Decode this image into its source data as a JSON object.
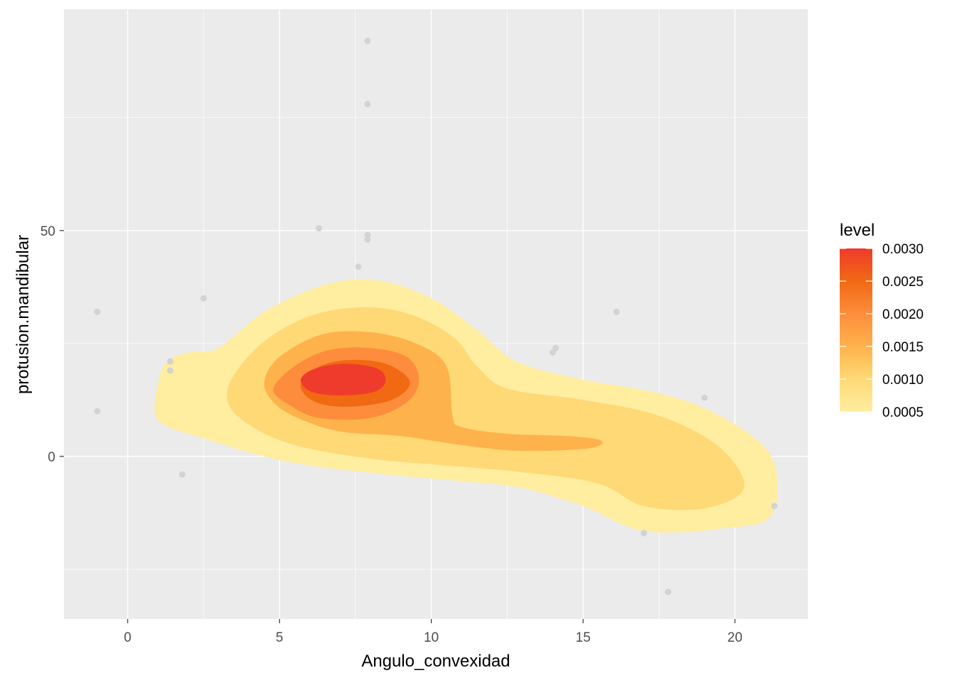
{
  "chart_data": {
    "type": "density2d_filled_with_scatter",
    "xlabel": "Angulo_convexidad",
    "ylabel": "protusion.mandibular",
    "xlim": [
      -2.1,
      22.4
    ],
    "ylim": [
      -36,
      99
    ],
    "x_ticks": [
      0,
      5,
      10,
      15,
      20
    ],
    "x_minor_ticks": [
      2.5,
      7.5,
      12.5,
      17.5
    ],
    "y_ticks": [
      0,
      50
    ],
    "y_minor_ticks": [
      -25,
      25,
      75
    ],
    "grid": true,
    "panel_background": "#ebebeb",
    "point_color": "#d3d3d3",
    "points": [
      {
        "x": 7.9,
        "y": 92
      },
      {
        "x": 7.9,
        "y": 78
      },
      {
        "x": 6.3,
        "y": 50.5
      },
      {
        "x": 7.9,
        "y": 49
      },
      {
        "x": 7.9,
        "y": 48
      },
      {
        "x": 7.6,
        "y": 42
      },
      {
        "x": -1.0,
        "y": 32
      },
      {
        "x": 2.5,
        "y": 35
      },
      {
        "x": 1.4,
        "y": 21
      },
      {
        "x": 1.4,
        "y": 19
      },
      {
        "x": -1.0,
        "y": 10
      },
      {
        "x": 1.8,
        "y": -4
      },
      {
        "x": 16.1,
        "y": 32
      },
      {
        "x": 14.1,
        "y": 24
      },
      {
        "x": 14.0,
        "y": 23
      },
      {
        "x": 19.0,
        "y": 13
      },
      {
        "x": 21.3,
        "y": -11
      },
      {
        "x": 17.0,
        "y": -17
      },
      {
        "x": 17.8,
        "y": -30
      }
    ],
    "levels": [
      {
        "level": 0.0005,
        "color": "#ffeda0",
        "poly": [
          [
            3,
            24
          ],
          [
            4.5,
            32
          ],
          [
            6.5,
            38
          ],
          [
            8.2,
            39
          ],
          [
            10,
            35
          ],
          [
            11.5,
            28
          ],
          [
            12.8,
            21
          ],
          [
            15,
            17
          ],
          [
            17.5,
            14
          ],
          [
            19.5,
            9
          ],
          [
            21.2,
            0
          ],
          [
            21.2,
            -13
          ],
          [
            19.5,
            -16
          ],
          [
            17,
            -16.5
          ],
          [
            15,
            -11
          ],
          [
            13,
            -7
          ],
          [
            11,
            -5.5
          ],
          [
            8.5,
            -4
          ],
          [
            6,
            -2
          ],
          [
            4.5,
            0
          ],
          [
            2.5,
            4
          ],
          [
            1,
            8
          ],
          [
            1,
            16
          ],
          [
            1.3,
            21
          ],
          [
            2,
            23
          ]
        ]
      },
      {
        "level": 0.001,
        "color": "#fed976",
        "poly": [
          [
            3.5,
            18
          ],
          [
            4.6,
            26
          ],
          [
            6.2,
            31.5
          ],
          [
            8,
            33
          ],
          [
            9.5,
            31
          ],
          [
            10.8,
            26
          ],
          [
            11.5,
            20
          ],
          [
            12.5,
            15
          ],
          [
            15,
            12.5
          ],
          [
            17.5,
            9
          ],
          [
            19.5,
            2
          ],
          [
            20.3,
            -7
          ],
          [
            19,
            -11.5
          ],
          [
            17,
            -11
          ],
          [
            15.5,
            -6
          ],
          [
            13,
            -3.5
          ],
          [
            10.5,
            -2
          ],
          [
            8,
            -0.5
          ],
          [
            5.5,
            2.5
          ],
          [
            4,
            7
          ],
          [
            3.3,
            12
          ]
        ]
      },
      {
        "level": 0.0015,
        "color": "#feb24c",
        "poly": [
          [
            4.5,
            16.5
          ],
          [
            5,
            22
          ],
          [
            6.4,
            27
          ],
          [
            8,
            27.5
          ],
          [
            9.5,
            25
          ],
          [
            10.5,
            20
          ],
          [
            10.7,
            9
          ],
          [
            11,
            6.5
          ],
          [
            12.5,
            5
          ],
          [
            14.5,
            4.5
          ],
          [
            15.6,
            3.5
          ],
          [
            15.2,
            1.8
          ],
          [
            13,
            1.2
          ],
          [
            11,
            2.5
          ],
          [
            9,
            4.5
          ],
          [
            7,
            5.5
          ],
          [
            5.6,
            8.5
          ],
          [
            4.8,
            12
          ]
        ]
      },
      {
        "level": 0.002,
        "color": "#fd8d3c",
        "poly": [
          [
            4.8,
            15
          ],
          [
            5.5,
            20
          ],
          [
            6.6,
            23.5
          ],
          [
            8,
            24
          ],
          [
            9.2,
            22
          ],
          [
            9.6,
            17
          ],
          [
            9.2,
            12
          ],
          [
            8,
            8.5
          ],
          [
            6.3,
            8.5
          ],
          [
            5.3,
            11.5
          ]
        ]
      },
      {
        "level": 0.0025,
        "color": "#f16913",
        "poly": [
          [
            5.7,
            15.5
          ],
          [
            6.2,
            19.5
          ],
          [
            7.2,
            21.3
          ],
          [
            8.5,
            20.5
          ],
          [
            9.3,
            16.5
          ],
          [
            8.7,
            12.5
          ],
          [
            7.3,
            11
          ],
          [
            6.2,
            12
          ]
        ]
      },
      {
        "level": 0.003,
        "color": "#ef3b2c",
        "poly": [
          [
            5.7,
            17
          ],
          [
            6.2,
            19.5
          ],
          [
            7.2,
            20.5
          ],
          [
            8.2,
            19.5
          ],
          [
            8.5,
            17
          ],
          [
            8.2,
            14.5
          ],
          [
            7.2,
            13.5
          ],
          [
            6.1,
            14.2
          ]
        ]
      }
    ],
    "legend": {
      "title": "level",
      "position": "right",
      "labels": [
        "0.0030",
        "0.0025",
        "0.0020",
        "0.0015",
        "0.0010",
        "0.0005"
      ],
      "values": [
        0.003,
        0.0025,
        0.002,
        0.0015,
        0.001,
        0.0005
      ],
      "colors": [
        "#ef3b2c",
        "#f16913",
        "#fd8d3c",
        "#feb24c",
        "#fed976",
        "#ffeda0"
      ]
    }
  }
}
